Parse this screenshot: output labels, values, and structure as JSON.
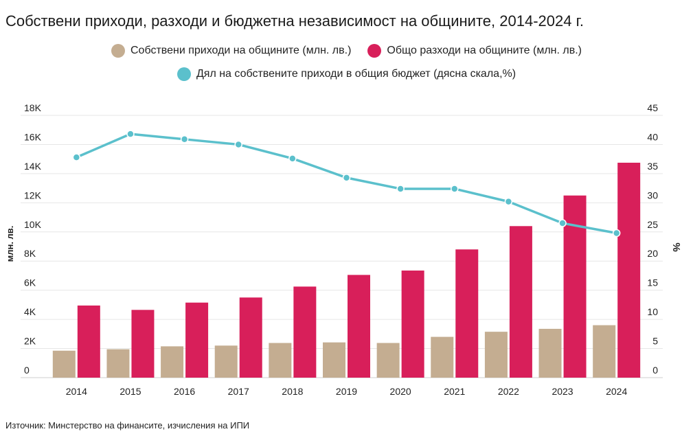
{
  "title": "Собствени приходи, разходи и бюджетна независимост на общините, 2014-2024 г.",
  "source": "Източник: Минстерство на финансите, изчисления на ИПИ",
  "colors": {
    "own_revenue": "#c4ad91",
    "total_expenditure": "#d81f5a",
    "share": "#5bc0cc"
  },
  "legend": {
    "own_revenue": "Собствени приходи на общините (млн. лв.)",
    "total_expenditure": "Общо разходи на общините (млн. лв.)",
    "share": "Дял на собствените приходи в общия бюджет (дясна скала,%)"
  },
  "chart_data": {
    "type": "bar",
    "title": "Собствени приходи, разходи и бюджетна независимост на общините, 2014-2024 г.",
    "categories": [
      "2014",
      "2015",
      "2016",
      "2017",
      "2018",
      "2019",
      "2020",
      "2021",
      "2022",
      "2023",
      "2024"
    ],
    "series": [
      {
        "name": "Собствени приходи на общините (млн. лв.)",
        "type": "bar",
        "axis": "left",
        "values": [
          1850,
          1950,
          2150,
          2200,
          2380,
          2420,
          2380,
          2800,
          3150,
          3350,
          3600
        ]
      },
      {
        "name": "Общо разходи на общините (млн. лв.)",
        "type": "bar",
        "axis": "left",
        "values": [
          4950,
          4650,
          5150,
          5500,
          6250,
          7050,
          7350,
          8800,
          10400,
          12500,
          14750
        ]
      },
      {
        "name": "Дял на собствените приходи в общия бюджет (дясна скала,%)",
        "type": "line",
        "axis": "right",
        "values": [
          37.8,
          41.8,
          40.9,
          40.0,
          37.6,
          34.3,
          32.4,
          32.4,
          30.2,
          26.5,
          24.8
        ]
      }
    ],
    "ylabel": "млн. лв.",
    "ylim": [
      0,
      18000
    ],
    "yticks": [
      "0",
      "2K",
      "4K",
      "6K",
      "8K",
      "10K",
      "12K",
      "14K",
      "16K",
      "18K"
    ],
    "y2label": "%",
    "y2lim": [
      0,
      45
    ],
    "y2ticks": [
      "0",
      "5",
      "10",
      "15",
      "20",
      "25",
      "30",
      "35",
      "40",
      "45"
    ],
    "grid": true,
    "legend_position": "top"
  }
}
